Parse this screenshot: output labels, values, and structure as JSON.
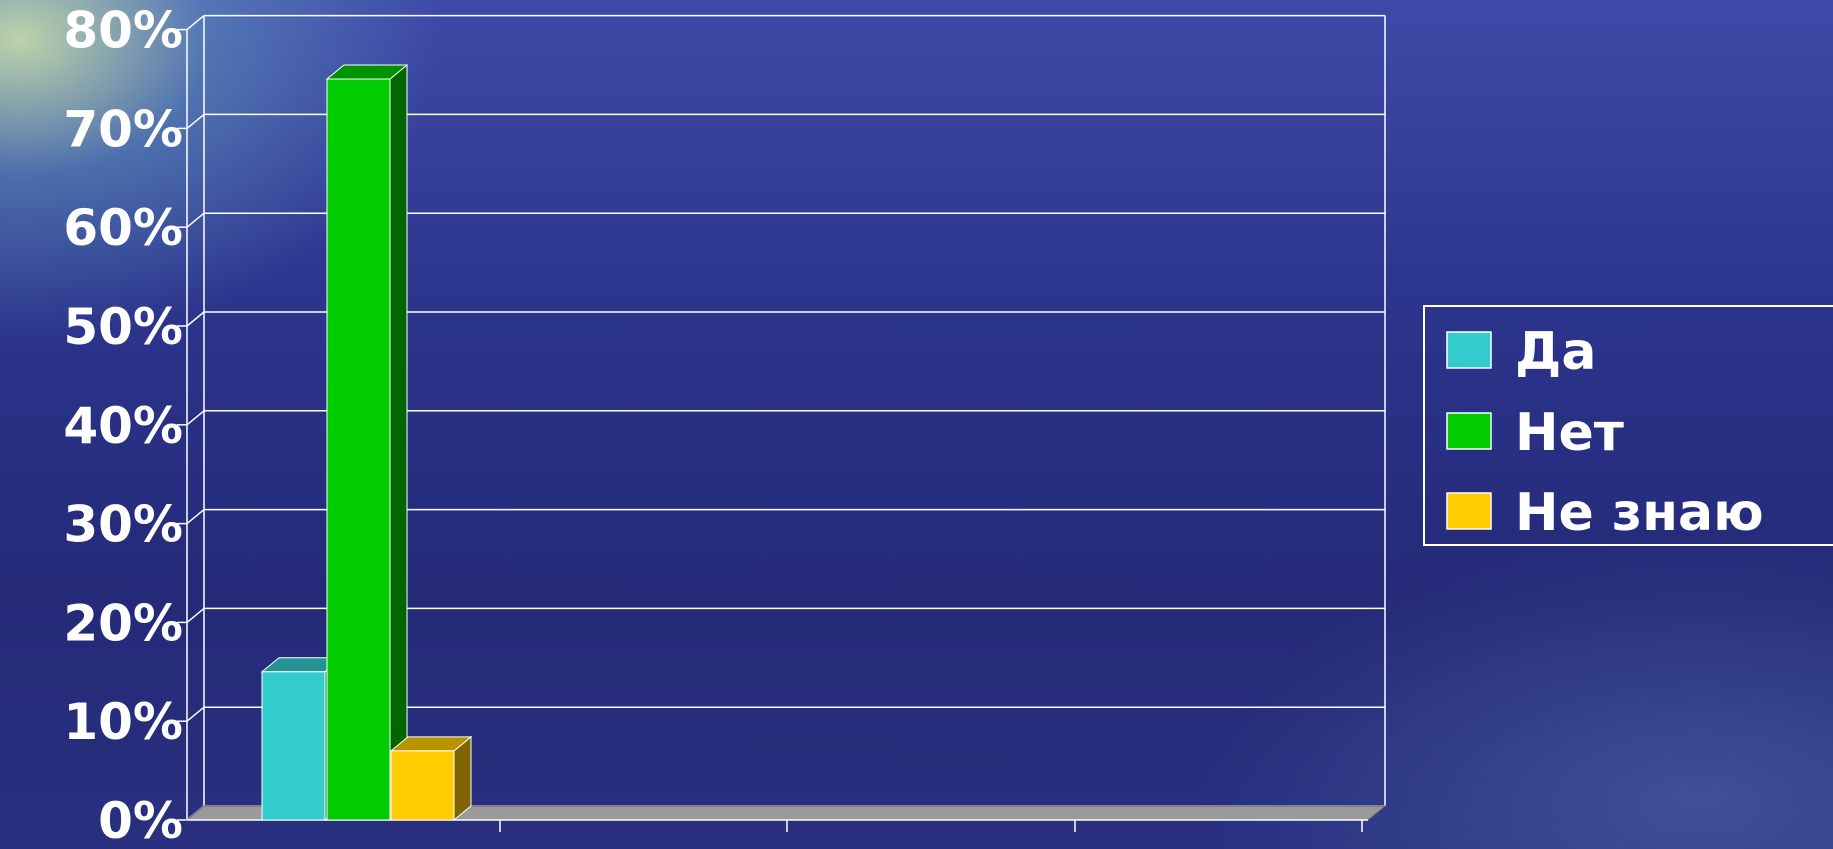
{
  "chart_data": {
    "type": "bar",
    "categories": [
      ""
    ],
    "series": [
      {
        "name": "Да",
        "values": [
          15
        ],
        "color": "#33cccc"
      },
      {
        "name": "Нет",
        "values": [
          75
        ],
        "color": "#00cc00"
      },
      {
        "name": "Не знаю",
        "values": [
          7
        ],
        "color": "#ffcc00"
      }
    ],
    "ylim": [
      0,
      80
    ],
    "y_ticks": [
      "0%",
      "10%",
      "20%",
      "30%",
      "40%",
      "50%",
      "60%",
      "70%",
      "80%"
    ],
    "grid": true,
    "legend_position": "right",
    "title": "",
    "xlabel": "",
    "ylabel": ""
  }
}
